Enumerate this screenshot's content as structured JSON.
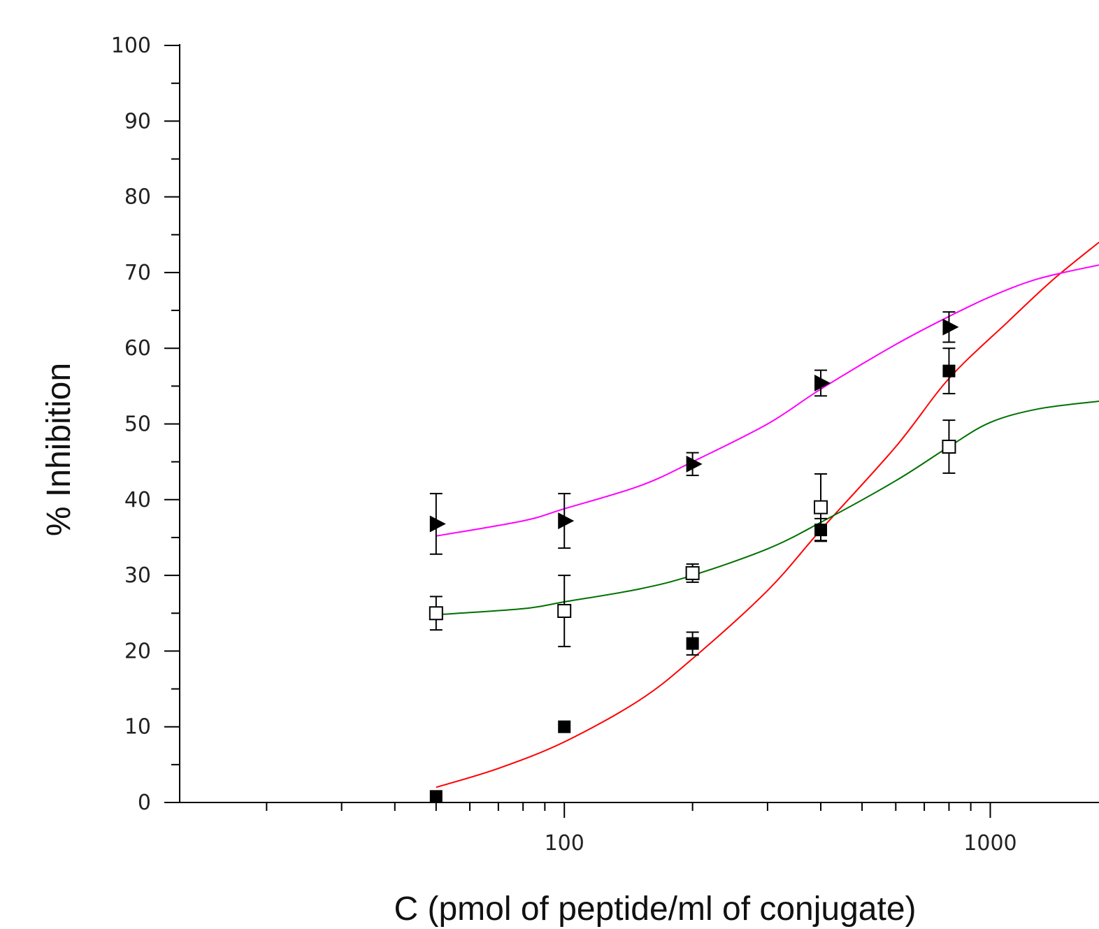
{
  "chart_data": {
    "type": "scatter",
    "xlabel": "C (pmol of peptide/ml of conjugate)",
    "ylabel": "% Inhibition",
    "x_scale": "log",
    "xlim": [
      12.5,
      1800
    ],
    "ylim": [
      0,
      100
    ],
    "x_ticks": [
      100,
      1000
    ],
    "x_tick_labels": [
      "100",
      "1000"
    ],
    "y_ticks": [
      0,
      10,
      20,
      30,
      40,
      50,
      60,
      70,
      80,
      90,
      100
    ],
    "y_tick_labels": [
      "0",
      "10",
      "20",
      "30",
      "40",
      "50",
      "60",
      "70",
      "80",
      "90",
      "100"
    ],
    "grid": false,
    "series": [
      {
        "marker": "filled-square",
        "color": "#000000",
        "line_color": "#ff0000",
        "points": [
          {
            "x": 50,
            "y": 0.8,
            "err": 0
          },
          {
            "x": 100,
            "y": 10,
            "err": 0
          },
          {
            "x": 200,
            "y": 21,
            "err": 1.5
          },
          {
            "x": 400,
            "y": 36,
            "err": 1.5
          },
          {
            "x": 800,
            "y": 57,
            "err": 3
          }
        ],
        "curve": [
          {
            "x": 50,
            "y": 2
          },
          {
            "x": 70,
            "y": 4.5
          },
          {
            "x": 100,
            "y": 8
          },
          {
            "x": 150,
            "y": 13.5
          },
          {
            "x": 200,
            "y": 19
          },
          {
            "x": 300,
            "y": 28
          },
          {
            "x": 400,
            "y": 36
          },
          {
            "x": 600,
            "y": 47
          },
          {
            "x": 800,
            "y": 56
          },
          {
            "x": 1100,
            "y": 63.5
          },
          {
            "x": 1400,
            "y": 69
          },
          {
            "x": 1800,
            "y": 74
          }
        ]
      },
      {
        "marker": "open-square",
        "color": "#000000",
        "line_color": "#007000",
        "points": [
          {
            "x": 50,
            "y": 25,
            "err": 2.2
          },
          {
            "x": 100,
            "y": 25.3,
            "err": 4.7
          },
          {
            "x": 200,
            "y": 30.3,
            "err": 1.2
          },
          {
            "x": 400,
            "y": 39,
            "err": 4.4
          },
          {
            "x": 800,
            "y": 47,
            "err": 3.5
          }
        ],
        "curve": [
          {
            "x": 50,
            "y": 24.8
          },
          {
            "x": 80,
            "y": 25.6
          },
          {
            "x": 100,
            "y": 26.5
          },
          {
            "x": 150,
            "y": 28.2
          },
          {
            "x": 200,
            "y": 30
          },
          {
            "x": 300,
            "y": 33.5
          },
          {
            "x": 400,
            "y": 37
          },
          {
            "x": 600,
            "y": 42.5
          },
          {
            "x": 800,
            "y": 47
          },
          {
            "x": 1000,
            "y": 50.2
          },
          {
            "x": 1300,
            "y": 52
          },
          {
            "x": 1800,
            "y": 53
          }
        ]
      },
      {
        "marker": "filled-triangle-right",
        "color": "#000000",
        "line_color": "#ff00ff",
        "points": [
          {
            "x": 50,
            "y": 36.8,
            "err": 4
          },
          {
            "x": 100,
            "y": 37.2,
            "err": 3.6
          },
          {
            "x": 200,
            "y": 44.7,
            "err": 1.5
          },
          {
            "x": 400,
            "y": 55.4,
            "err": 1.7
          },
          {
            "x": 800,
            "y": 62.8,
            "err": 2
          }
        ],
        "curve": [
          {
            "x": 50,
            "y": 35.2
          },
          {
            "x": 80,
            "y": 37.2
          },
          {
            "x": 100,
            "y": 38.8
          },
          {
            "x": 150,
            "y": 41.8
          },
          {
            "x": 200,
            "y": 45
          },
          {
            "x": 300,
            "y": 50
          },
          {
            "x": 400,
            "y": 54.6
          },
          {
            "x": 600,
            "y": 60.5
          },
          {
            "x": 800,
            "y": 64.2
          },
          {
            "x": 1000,
            "y": 66.8
          },
          {
            "x": 1300,
            "y": 69.2
          },
          {
            "x": 1800,
            "y": 71
          }
        ]
      }
    ]
  }
}
